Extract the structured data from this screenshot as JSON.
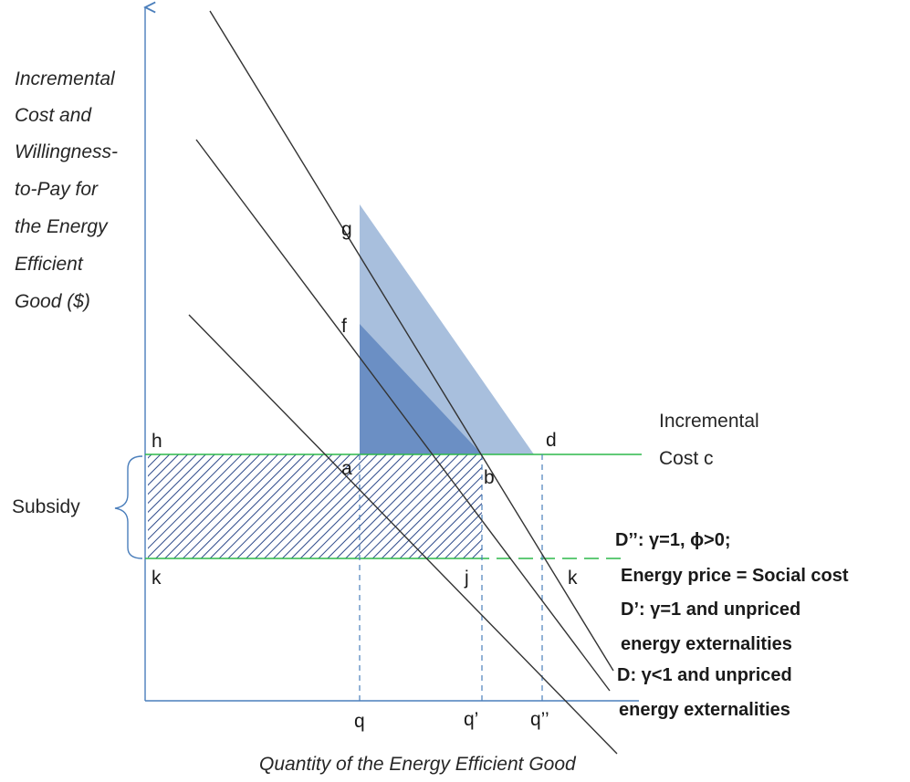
{
  "y_axis_label": [
    "Incremental",
    "Cost and",
    "Willingness-",
    "to-Pay for",
    "the Energy",
    "Efficient",
    "Good ($)"
  ],
  "x_axis_label": "Quantity of the Energy Efficient Good",
  "cost_label": [
    "Incremental",
    "Cost c"
  ],
  "subsidy_label": "Subsidy",
  "points": {
    "g": "g",
    "f": "f",
    "h": "h",
    "a": "a",
    "b": "b",
    "d": "d",
    "k_left": "k",
    "j": "j",
    "k_right": "k"
  },
  "x_ticks": {
    "q": "q",
    "q1": "q’",
    "q2": "q’’"
  },
  "curves": {
    "d2_line1": "D’’: γ=1, ϕ>0;",
    "d2_line2": "Energy price = Social cost",
    "d1_line1": "D’: γ=1 and unpriced",
    "d1_line2": "energy externalities",
    "d0_line1": "D: γ<1 and unpriced",
    "d0_line2": "energy externalities"
  },
  "colors": {
    "axis": "#4a7ebb",
    "cost_line": "#2db84a",
    "light_fill": "#a8bfdd",
    "dark_fill": "#6b8fc4",
    "hatch": "#2e4a8a",
    "demand": "#333333"
  }
}
